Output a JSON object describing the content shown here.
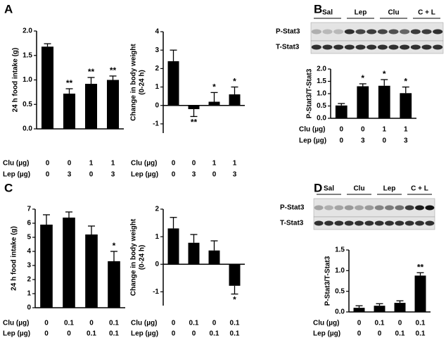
{
  "chart_data": [
    {
      "type": "bar",
      "panel": "A",
      "ylabel": [
        "24 h food intake (g)"
      ],
      "color": "#000000",
      "ylim": [
        0,
        2.0
      ],
      "yticks": [
        {
          "value": 0,
          "label": "0.0"
        },
        0.5,
        {
          "value": 1,
          "label": "1.0"
        },
        1.5,
        {
          "value": 2,
          "label": "2.0"
        }
      ],
      "values": [
        1.68,
        0.72,
        0.92,
        1.0
      ],
      "errors": [
        0.06,
        0.1,
        0.13,
        0.08
      ],
      "annotations": [
        null,
        "**",
        "**",
        "**"
      ],
      "conditions": [
        {
          "name": "Clu (µg)",
          "values": [
            0,
            0,
            1,
            1
          ]
        },
        {
          "name": "Lep (µg)",
          "values": [
            0,
            3,
            0,
            3
          ]
        }
      ]
    },
    {
      "type": "bar",
      "ylabel": [
        "Change in body weight",
        "(0-24 h)"
      ],
      "color": "#000000",
      "ylim": [
        -1.5,
        4
      ],
      "yticks": [
        -1,
        0,
        1,
        2,
        3,
        4
      ],
      "values": [
        2.4,
        -0.2,
        0.2,
        0.6
      ],
      "errors": [
        0.6,
        0.4,
        0.5,
        0.4
      ],
      "annotations": [
        null,
        "**",
        "*",
        "*"
      ],
      "conditions": [
        {
          "name": "Clu (µg)",
          "values": [
            0,
            0,
            1,
            1
          ]
        },
        {
          "name": "Lep (µg)",
          "values": [
            0,
            3,
            0,
            3
          ]
        }
      ]
    },
    {
      "type": "bar",
      "panel": "B",
      "ylabel": [
        "P-Stat3/T-Stat3"
      ],
      "color": "#000000",
      "blot": {
        "lanes": [
          "Sal",
          "Lep",
          "Clu",
          "C + L"
        ],
        "rows": [
          "P-Stat3",
          "T-Stat3"
        ]
      },
      "ylim": [
        0,
        2.0
      ],
      "yticks": [
        {
          "value": 0,
          "label": "0.0"
        },
        0.5,
        {
          "value": 1,
          "label": "1.0"
        },
        1.5,
        {
          "value": 2,
          "label": "2.0"
        }
      ],
      "values": [
        0.52,
        1.3,
        1.32,
        1.02
      ],
      "errors": [
        0.08,
        0.1,
        0.25,
        0.25
      ],
      "annotations": [
        null,
        "*",
        "*",
        "*"
      ],
      "conditions": [
        {
          "name": "Clu (µg)",
          "values": [
            0,
            0,
            1,
            1
          ]
        },
        {
          "name": "Lep (µg)",
          "values": [
            0,
            3,
            0,
            3
          ]
        }
      ]
    },
    {
      "type": "bar",
      "panel": "C",
      "ylabel": [
        "24 h food intake (g)"
      ],
      "color": "#000000",
      "ylim": [
        0,
        7
      ],
      "yticks": [
        0,
        1,
        2,
        3,
        4,
        5,
        6,
        7
      ],
      "values": [
        5.9,
        6.4,
        5.2,
        3.3
      ],
      "errors": [
        0.7,
        0.4,
        0.6,
        0.7
      ],
      "annotations": [
        null,
        null,
        null,
        "*"
      ],
      "conditions": [
        {
          "name": "Clu (µg)",
          "values": [
            0,
            0.1,
            0,
            0.1
          ]
        },
        {
          "name": "Lep (µg)",
          "values": [
            0,
            0,
            0.1,
            0.1
          ]
        }
      ]
    },
    {
      "type": "bar",
      "ylabel": [
        "Change in body weight",
        "(0-24 h)"
      ],
      "color": "#000000",
      "ylim": [
        -1.5,
        2
      ],
      "yticks": [
        -1,
        0,
        1,
        2
      ],
      "values": [
        1.3,
        0.78,
        0.5,
        -0.78
      ],
      "errors": [
        0.4,
        0.3,
        0.35,
        0.3
      ],
      "annotations": [
        null,
        null,
        null,
        "*"
      ],
      "conditions": [
        {
          "name": "Clu (µg)",
          "values": [
            0,
            0.1,
            0,
            0.1
          ]
        },
        {
          "name": "Lep (µg)",
          "values": [
            0,
            0,
            0.1,
            0.1
          ]
        }
      ]
    },
    {
      "type": "bar",
      "panel": "D",
      "ylabel": [
        "P-Stat3/T-Stat3"
      ],
      "color": "#000000",
      "blot": {
        "lanes": [
          "Sal",
          "Clu",
          "Lep",
          "C + L"
        ],
        "rows": [
          "P-Stat3",
          "T-Stat3"
        ]
      },
      "ylim": [
        0,
        1.5
      ],
      "yticks": [
        {
          "value": 0,
          "label": "0.0"
        },
        0.5,
        {
          "value": 1,
          "label": "1.0"
        },
        1.5
      ],
      "values": [
        0.1,
        0.15,
        0.22,
        0.88
      ],
      "errors": [
        0.05,
        0.05,
        0.05,
        0.07
      ],
      "annotations": [
        null,
        null,
        null,
        "**"
      ],
      "conditions": [
        {
          "name": "Clu (µg)",
          "values": [
            0,
            0.1,
            0,
            0.1
          ]
        },
        {
          "name": "Lep (µg)",
          "values": [
            0,
            0,
            0.1,
            0.1
          ]
        }
      ]
    }
  ]
}
